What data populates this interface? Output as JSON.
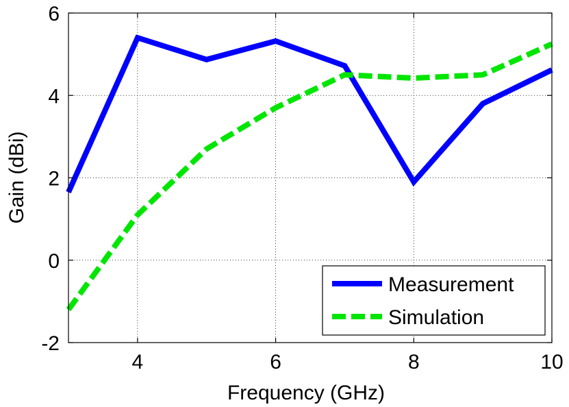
{
  "chart_data": {
    "type": "line",
    "title": "",
    "xlabel": "Frequency (GHz)",
    "ylabel": "Gain (dBi)",
    "xlim": [
      3,
      10
    ],
    "ylim": [
      -2,
      6
    ],
    "xticks": [
      4,
      6,
      8,
      10
    ],
    "yticks": [
      -2,
      0,
      2,
      4,
      6
    ],
    "xtick_labels": [
      "4",
      "6",
      "8",
      "10"
    ],
    "ytick_labels": [
      "-2",
      "0",
      "2",
      "4",
      "6"
    ],
    "grid": true,
    "legend_position": "bottom-right",
    "series": [
      {
        "name": "Measurement",
        "color": "#0000ff",
        "style": "solid",
        "x": [
          3,
          4,
          5,
          6,
          7,
          8,
          9,
          10
        ],
        "y": [
          1.65,
          5.4,
          4.87,
          5.32,
          4.72,
          1.9,
          3.8,
          4.62
        ]
      },
      {
        "name": "Simulation",
        "color": "#00e600",
        "style": "dashed",
        "x": [
          3,
          4,
          5,
          6,
          7,
          8,
          9,
          10
        ],
        "y": [
          -1.2,
          1.1,
          2.7,
          3.7,
          4.5,
          4.42,
          4.5,
          5.25
        ]
      }
    ]
  }
}
